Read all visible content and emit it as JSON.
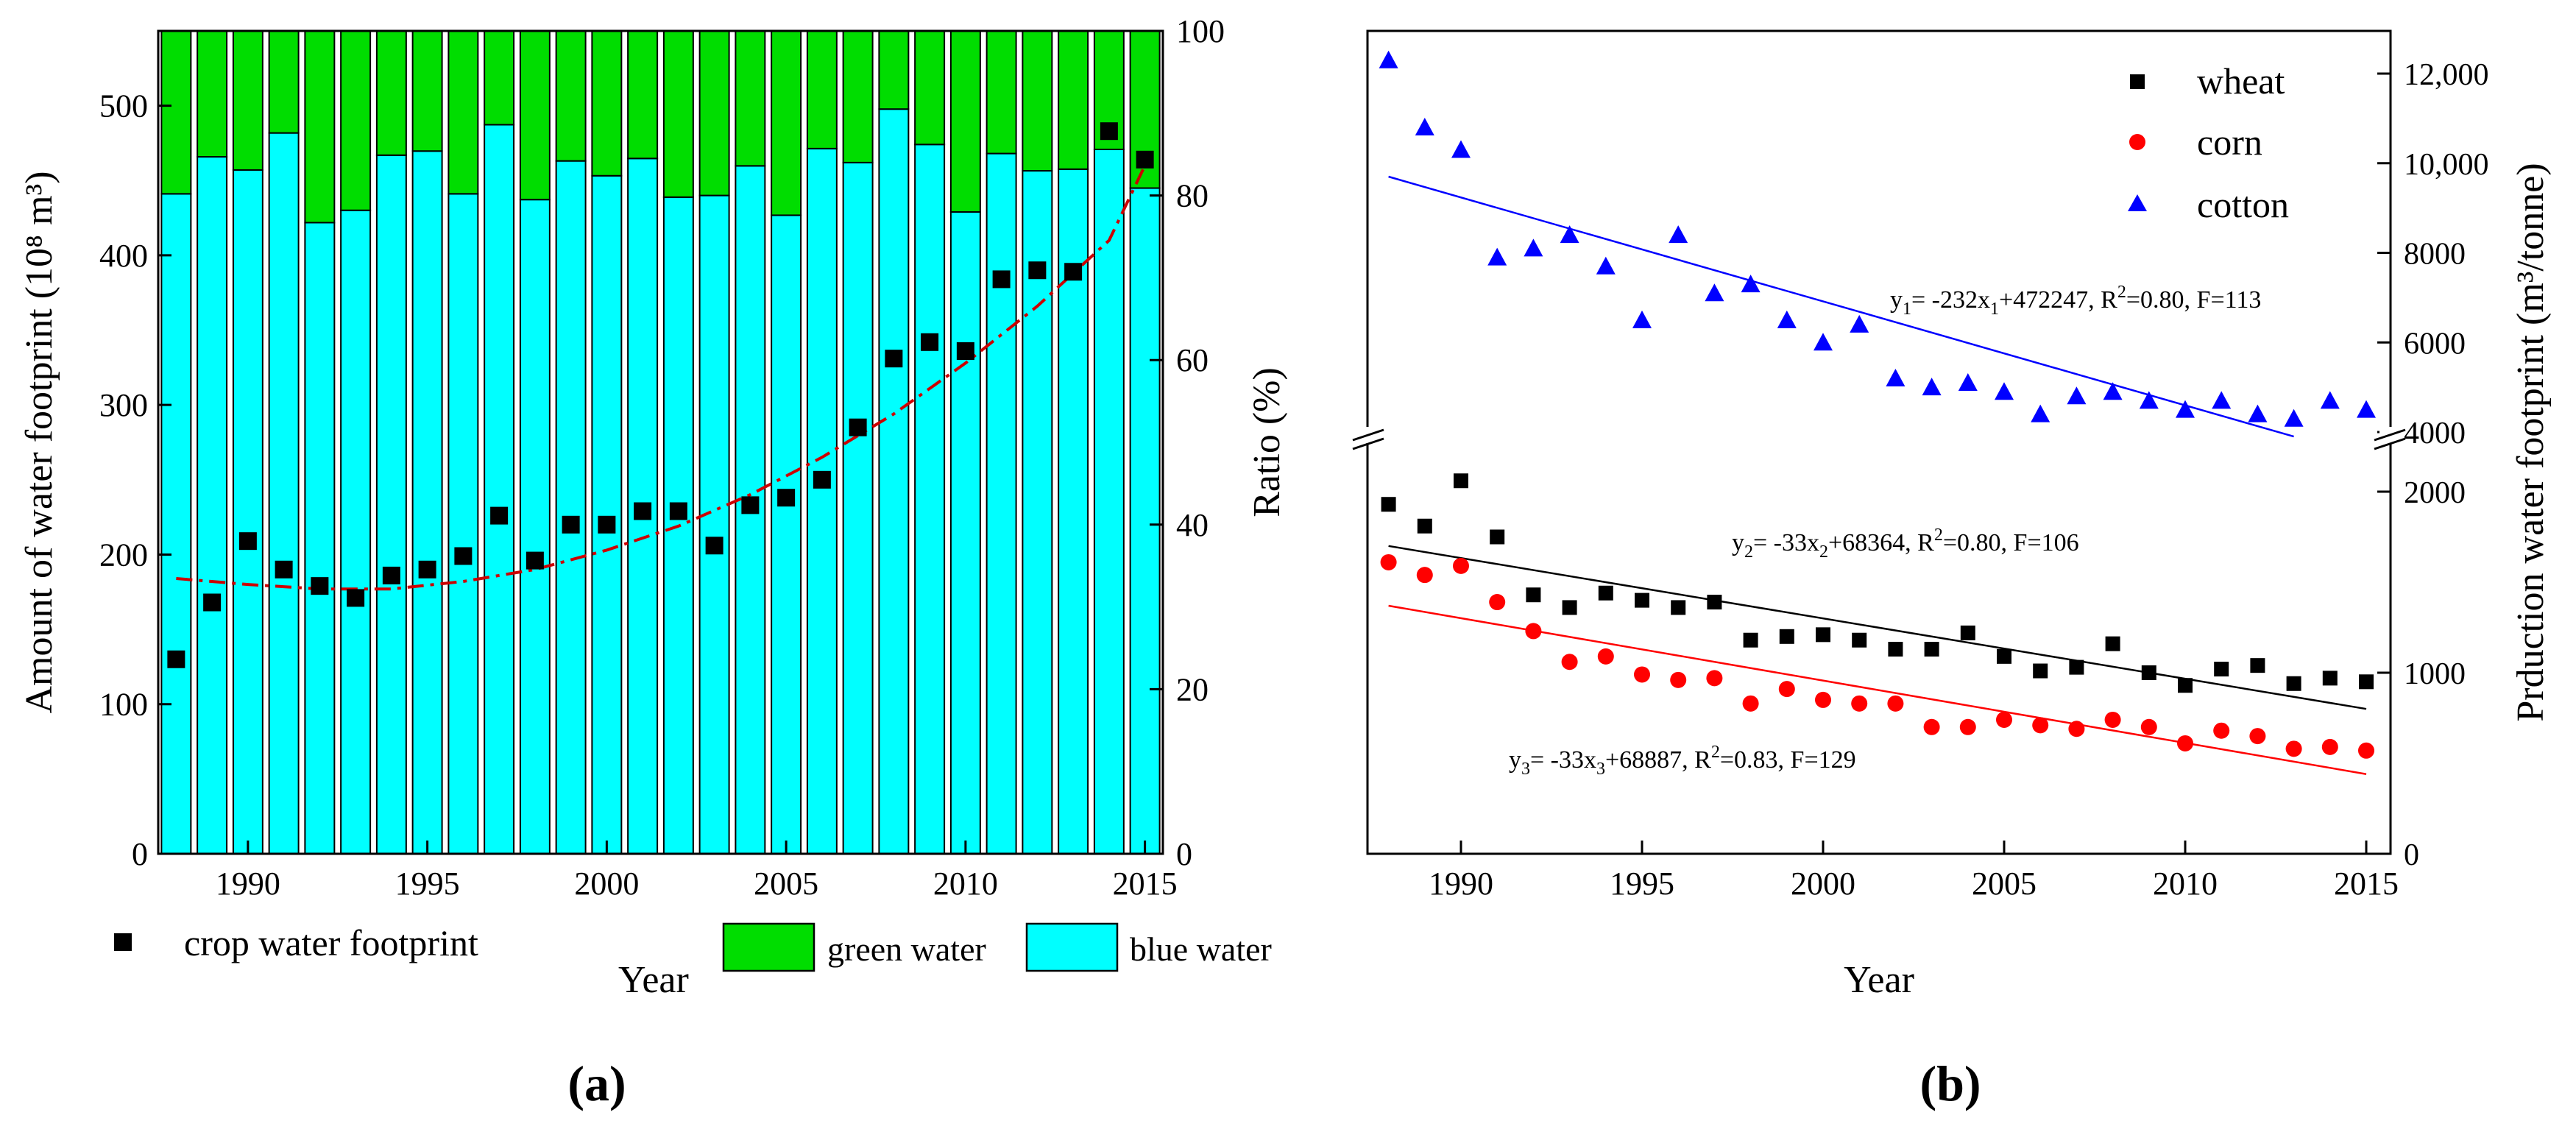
{
  "chart_data": [
    {
      "panel": "a",
      "type": "bar",
      "subtype": "stacked-percent-with-overlay-scatter",
      "panel_label": "(a)",
      "xlabel": "Year",
      "ylabel_left": "Amount of water footprint (10⁸ m³)",
      "ylabel_right": "Ratio (%)",
      "ylim_left": [
        0,
        550
      ],
      "ylim_right": [
        0,
        100
      ],
      "yticks_left": [
        "0",
        "100",
        "200",
        "300",
        "400",
        "500"
      ],
      "yticks_right": [
        "0",
        "20",
        "40",
        "60",
        "80",
        "100"
      ],
      "xticks": [
        "1990",
        "1995",
        "2000",
        "2005",
        "2010",
        "2015"
      ],
      "years": [
        1988,
        1989,
        1990,
        1991,
        1992,
        1993,
        1994,
        1995,
        1996,
        1997,
        1998,
        1999,
        2000,
        2001,
        2002,
        2003,
        2004,
        2005,
        2006,
        2007,
        2008,
        2009,
        2010,
        2011,
        2012,
        2013,
        2014,
        2015
      ],
      "series": [
        {
          "name": "blue water",
          "color": "#00ffff",
          "axis": "right",
          "values": [
            80.2,
            84.7,
            83.1,
            87.6,
            76.7,
            78.2,
            84.9,
            85.4,
            80.2,
            88.6,
            79.5,
            84.2,
            82.4,
            84.5,
            79.8,
            80.0,
            83.6,
            77.6,
            85.7,
            84.0,
            90.5,
            86.2,
            78.0,
            85.1,
            83.0,
            83.2,
            85.6,
            80.9
          ]
        },
        {
          "name": "green water",
          "color": "#00dd00",
          "axis": "right",
          "values": [
            19.8,
            15.3,
            16.9,
            12.4,
            23.3,
            21.8,
            15.1,
            14.6,
            19.8,
            11.4,
            20.5,
            15.8,
            17.6,
            15.5,
            20.2,
            20.0,
            16.4,
            22.4,
            14.3,
            16.0,
            9.5,
            13.8,
            22.0,
            14.9,
            17.0,
            16.8,
            14.4,
            19.1
          ]
        },
        {
          "name": "crop water footprint",
          "marker": "square",
          "color": "#000000",
          "axis": "left",
          "values": [
            130,
            168,
            209,
            190,
            179,
            171,
            186,
            190,
            199,
            226,
            196,
            220,
            220,
            229,
            229,
            206,
            233,
            238,
            250,
            285,
            331,
            342,
            336,
            384,
            390,
            389,
            483,
            464
          ]
        }
      ],
      "trendline": {
        "style": "dash-dot",
        "color": "#cc0000",
        "x": [
          1988,
          1990,
          1992,
          1994,
          1996,
          1998,
          2000,
          2002,
          2004,
          2006,
          2008,
          2010,
          2012,
          2014,
          2015
        ],
        "y": [
          184,
          180,
          177,
          177,
          182,
          190,
          203,
          219,
          240,
          265,
          294,
          328,
          366,
          410,
          460
        ]
      },
      "legend": {
        "crop": "crop water footprint",
        "green": "green water",
        "blue": "blue water",
        "year": "Year"
      }
    },
    {
      "panel": "b",
      "type": "scatter",
      "panel_label": "(b)",
      "xlabel": "Year",
      "ylabel": "Prduction water footprint (m³/tonne)",
      "xticks": [
        "1990",
        "1995",
        "2000",
        "2005",
        "2010",
        "2015"
      ],
      "yticks_upper": [
        "4000",
        "6000",
        "8000",
        "10,000",
        "12,000"
      ],
      "yticks_lower": [
        "0",
        "1000",
        "2000"
      ],
      "ylim_upper": [
        4000,
        12600
      ],
      "ylim_lower": [
        0,
        2400
      ],
      "broken_axis": true,
      "years": [
        1988,
        1989,
        1990,
        1991,
        1992,
        1993,
        1994,
        1995,
        1996,
        1997,
        1998,
        1999,
        2000,
        2001,
        2002,
        2003,
        2004,
        2005,
        2006,
        2007,
        2008,
        2009,
        2010,
        2011,
        2012,
        2013,
        2014,
        2015
      ],
      "series": [
        {
          "name": "wheat",
          "marker": "square",
          "color": "#000000",
          "values": [
            1930,
            1810,
            2060,
            1750,
            1430,
            1360,
            1440,
            1400,
            1360,
            1390,
            1180,
            1200,
            1210,
            1180,
            1130,
            1130,
            1220,
            1090,
            1010,
            1030,
            1160,
            1000,
            930,
            1020,
            1040,
            940,
            970,
            950
          ],
          "fit": {
            "x": [
              1988,
              2015
            ],
            "y": [
              1700,
              800
            ]
          }
        },
        {
          "name": "corn",
          "marker": "circle",
          "color": "#ff0000",
          "values": [
            1610,
            1540,
            1590,
            1390,
            1230,
            1060,
            1090,
            990,
            960,
            970,
            830,
            910,
            850,
            830,
            830,
            700,
            700,
            740,
            710,
            690,
            740,
            700,
            610,
            680,
            650,
            580,
            590,
            570
          ],
          "fit": {
            "x": [
              1988,
              2015
            ],
            "y": [
              1370,
              440
            ]
          }
        },
        {
          "name": "cotton",
          "marker": "triangle",
          "color": "#0000ff",
          "values": [
            12300,
            10800,
            10300,
            7900,
            8100,
            8400,
            7700,
            6500,
            8400,
            7100,
            7300,
            6500,
            6000,
            6400,
            5200,
            5000,
            5100,
            4900,
            4400,
            4800,
            4900,
            4700,
            4500,
            4700,
            4400,
            4300,
            4700,
            4500
          ],
          "fit": {
            "x": [
              1988,
              2013
            ],
            "y": [
              9700,
              3900
            ]
          }
        }
      ],
      "equations": [
        {
          "base": "y",
          "sub": "1",
          "text": "= -232x",
          "sub2": "1",
          "text2": "+472247, R",
          "sup": "2",
          "text3": "=0.80, F=113"
        },
        {
          "base": "y",
          "sub": "2",
          "text": "= -33x",
          "sub2": "2",
          "text2": "+68364, R",
          "sup": "2",
          "text3": "=0.80, F=106"
        },
        {
          "base": "y",
          "sub": "3",
          "text": "= -33x",
          "sub2": "3",
          "text2": "+68887, R",
          "sup": "2",
          "text3": "=0.83, F=129"
        }
      ]
    }
  ]
}
